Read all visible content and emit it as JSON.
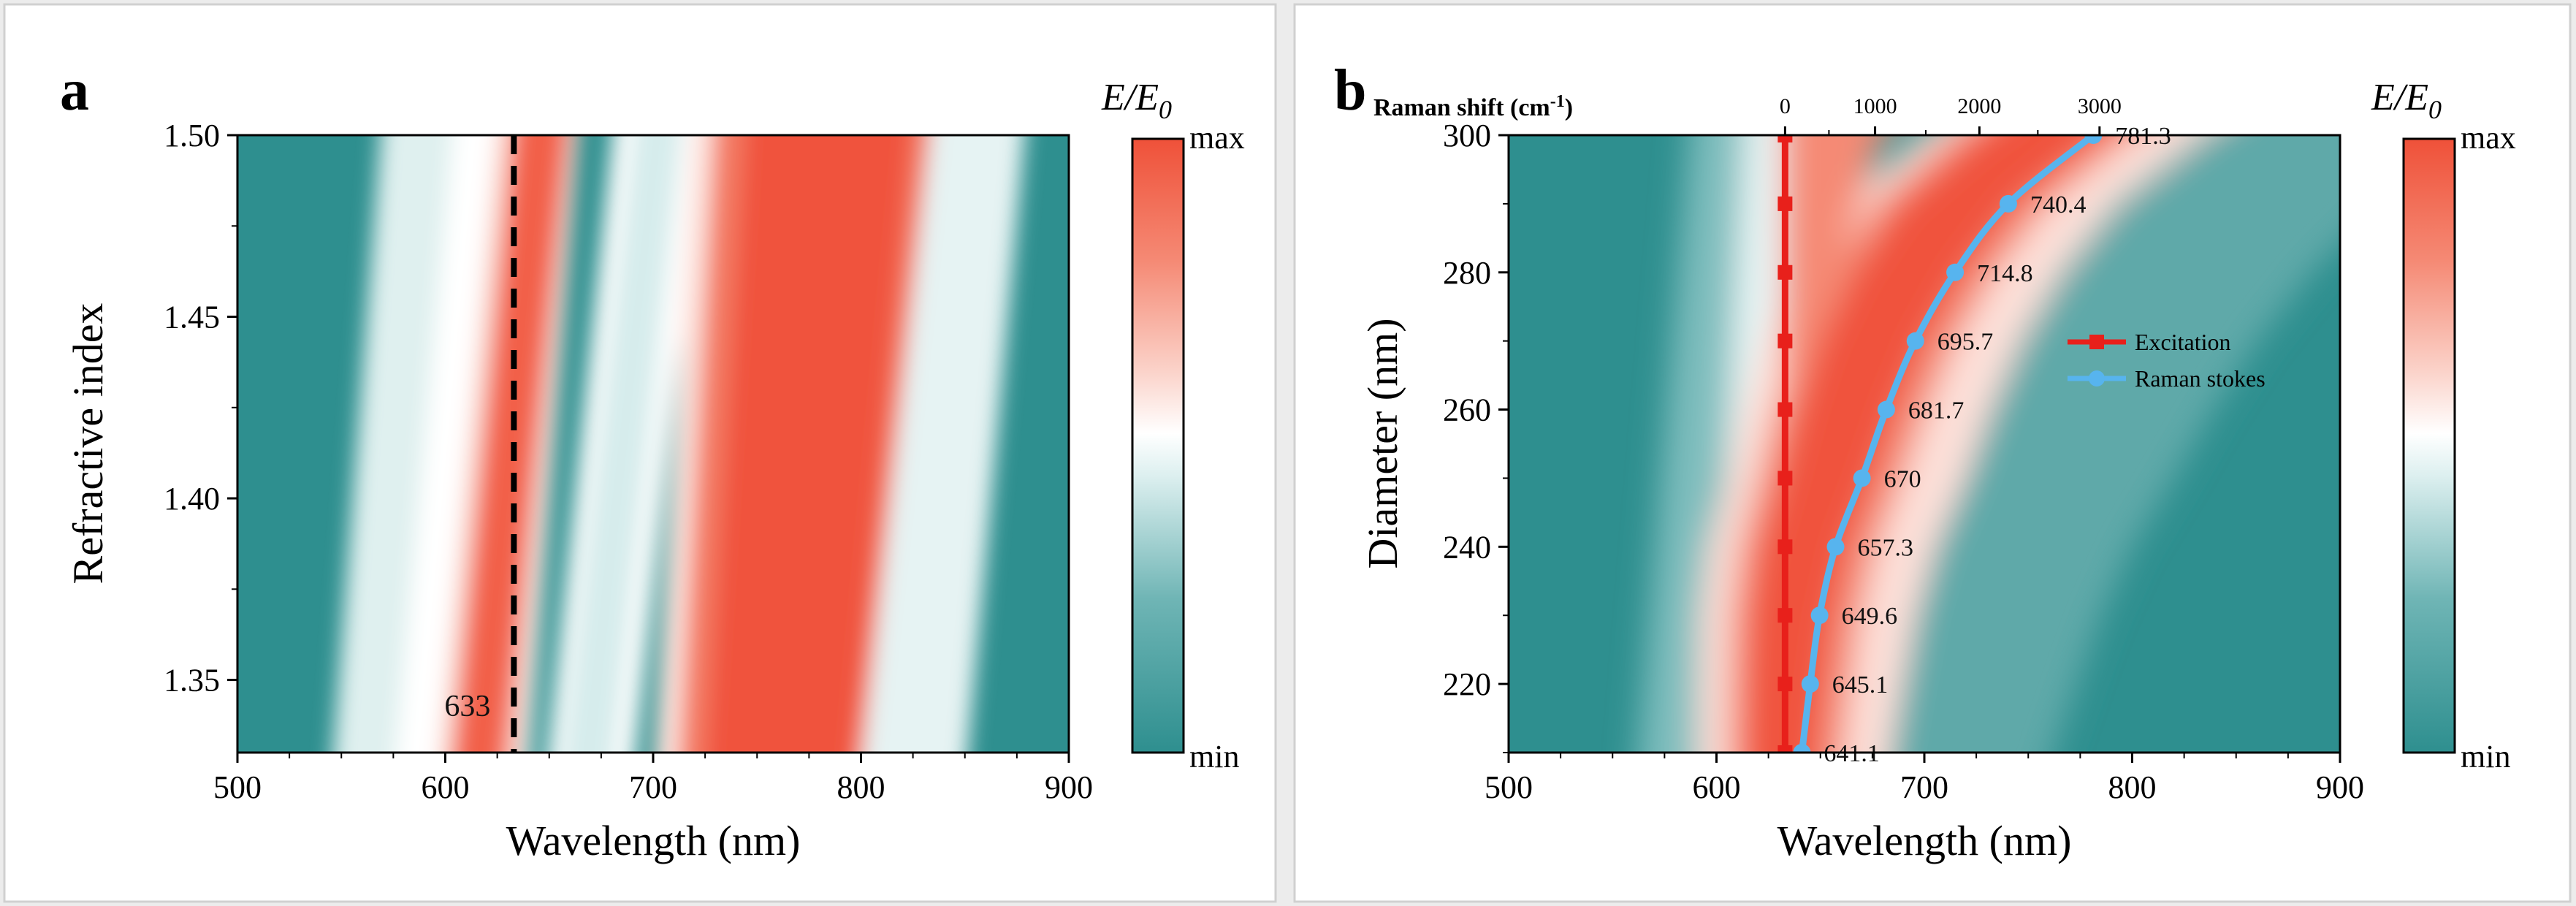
{
  "chart_data": [
    {
      "panel": "a",
      "type": "heatmap",
      "xlabel": "Wavelength (nm)",
      "ylabel": "Refractive index",
      "xlim": [
        500,
        900
      ],
      "ylim": [
        1.33,
        1.5
      ],
      "xticks": [
        "500",
        "600",
        "700",
        "800",
        "900"
      ],
      "yticks": [
        "1.35",
        "1.40",
        "1.45",
        "1.50"
      ],
      "xtick_values": [
        500,
        600,
        700,
        800,
        900
      ],
      "ytick_values": [
        1.35,
        1.4,
        1.45,
        1.5
      ],
      "colorbar": {
        "title": "E/E",
        "title_sub": "0",
        "max_label": "max",
        "min_label": "min"
      },
      "annotation": {
        "text": "633",
        "x": 633,
        "line": "dashed vertical"
      },
      "band_centers_nm": {
        "bottom": [
          612,
          665,
          760
        ],
        "top": [
          643,
          700,
          790
        ]
      }
    },
    {
      "panel": "b",
      "type": "heatmap",
      "xlabel": "Wavelength (nm)",
      "ylabel": "Diameter (nm)",
      "xlim": [
        500,
        900
      ],
      "ylim": [
        210,
        300
      ],
      "xticks": [
        "500",
        "600",
        "700",
        "800",
        "900"
      ],
      "yticks": [
        "220",
        "240",
        "260",
        "280",
        "300"
      ],
      "xtick_values": [
        500,
        600,
        700,
        800,
        900
      ],
      "ytick_values": [
        220,
        240,
        260,
        280,
        300
      ],
      "top_axis": {
        "label": "Raman shift (cm",
        "label_sup": "-1",
        "label_end": ")",
        "ticks": [
          "0",
          "1000",
          "2000",
          "3000"
        ],
        "minor_ticks": [
          "500",
          "1500",
          "2500"
        ],
        "tick_wavelengths": [
          633,
          676.3,
          726.5,
          784.3
        ],
        "minor_tick_wavelengths": [
          654.1,
          700.7,
          754.6
        ]
      },
      "colorbar": {
        "title": "E/E",
        "title_sub": "0",
        "max_label": "max",
        "min_label": "min"
      },
      "series": [
        {
          "name": "Excitation",
          "color": "#e8201b",
          "x": [
            633,
            633,
            633,
            633,
            633,
            633,
            633,
            633,
            633,
            633
          ],
          "y": [
            210,
            220,
            230,
            240,
            250,
            260,
            270,
            280,
            290,
            300
          ]
        },
        {
          "name": "Raman stokes",
          "color": "#57b4ee",
          "x": [
            641.1,
            645.1,
            649.6,
            657.3,
            670,
            681.7,
            695.7,
            714.8,
            740.4,
            781.3
          ],
          "y": [
            210,
            220,
            230,
            240,
            250,
            260,
            270,
            280,
            290,
            300
          ],
          "labels": [
            "641.1",
            "645.1",
            "649.6",
            "657.3",
            "670",
            "681.7",
            "695.7",
            "714.8",
            "740.4",
            "781.3"
          ]
        }
      ]
    }
  ],
  "panel_labels": [
    "a",
    "b"
  ],
  "colors": {
    "teal": "#2e8f8f",
    "red": "#f0533d",
    "white": "#ffffff"
  }
}
